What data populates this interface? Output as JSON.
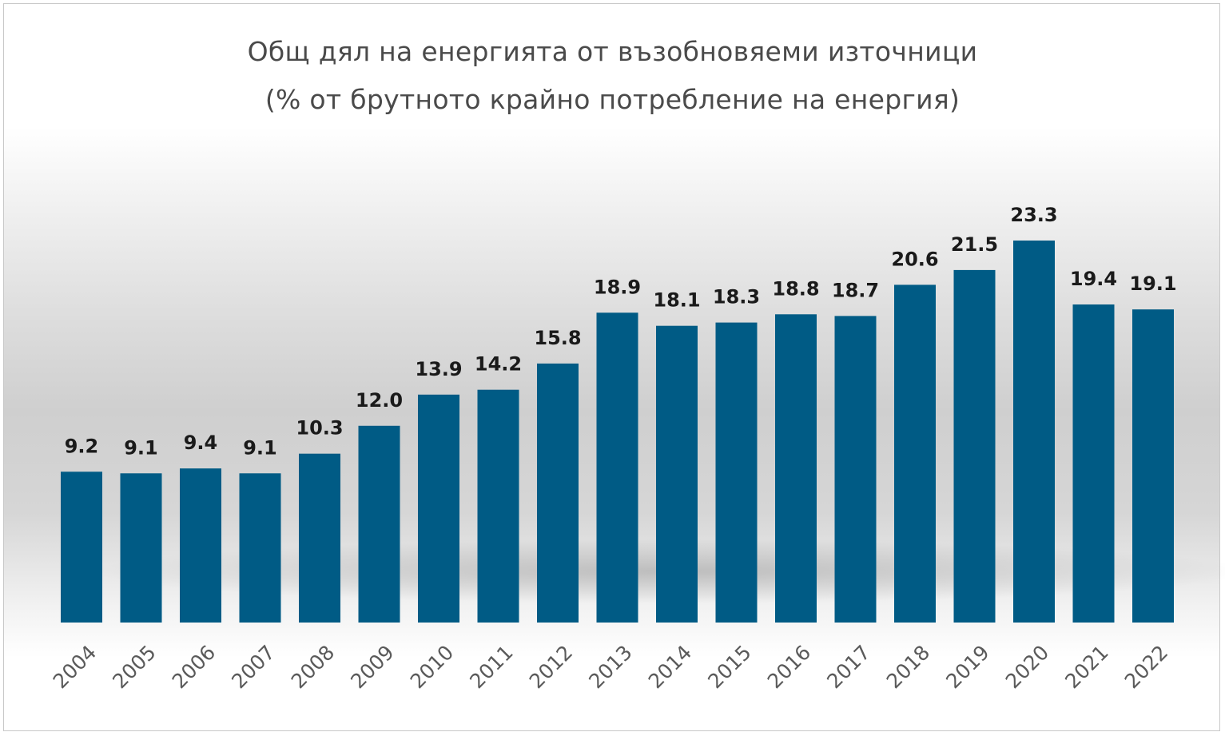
{
  "chart_data": {
    "type": "bar",
    "title": "Общ дял на енергията от възобновяеми източници",
    "subtitle": "(% от брутното крайно потребление на енергия)",
    "categories": [
      "2004",
      "2005",
      "2006",
      "2007",
      "2008",
      "2009",
      "2010",
      "2011",
      "2012",
      "2013",
      "2014",
      "2015",
      "2016",
      "2017",
      "2018",
      "2019",
      "2020",
      "2021",
      "2022"
    ],
    "values": [
      9.2,
      9.1,
      9.4,
      9.1,
      10.3,
      12.0,
      13.9,
      14.2,
      15.8,
      18.9,
      18.1,
      18.3,
      18.8,
      18.7,
      20.6,
      21.5,
      23.3,
      19.4,
      19.1
    ],
    "value_labels": [
      "9.2",
      "9.1",
      "9.4",
      "9.1",
      "10.3",
      "12.0",
      "13.9",
      "14.2",
      "15.8",
      "18.9",
      "18.1",
      "18.3",
      "18.8",
      "18.7",
      "20.6",
      "21.5",
      "23.3",
      "19.4",
      "19.1"
    ],
    "bar_color": "#005b85",
    "ylim": [
      0,
      23.3
    ],
    "grid": false,
    "xlabel": "",
    "ylabel": ""
  }
}
